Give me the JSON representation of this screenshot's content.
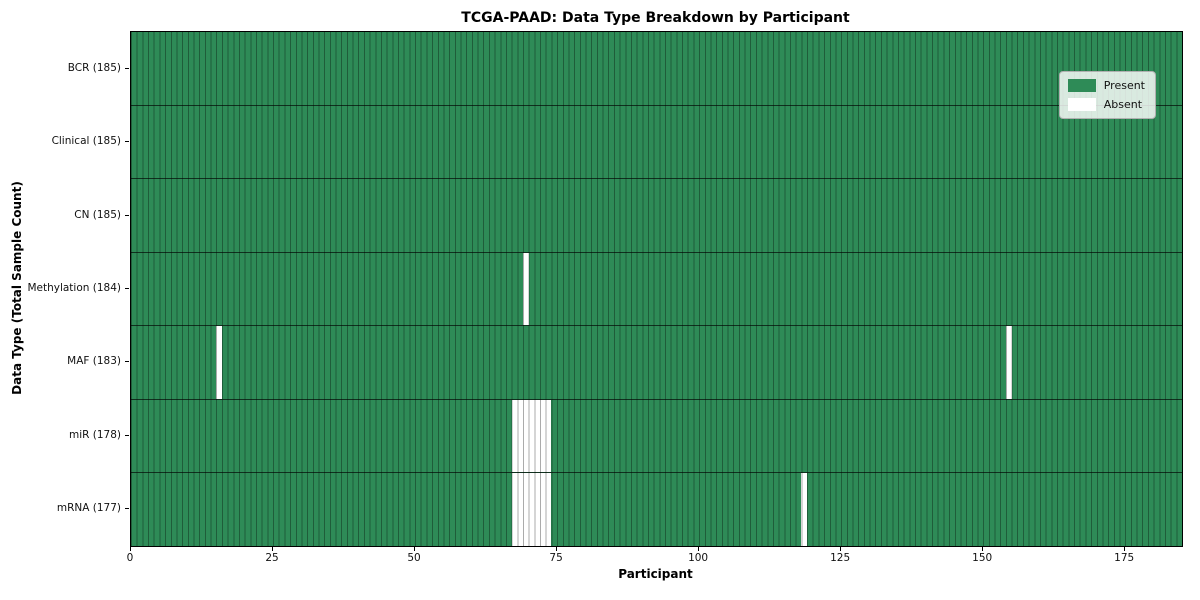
{
  "chart_data": {
    "type": "heatmap",
    "title": "TCGA-PAAD: Data Type Breakdown by Participant",
    "xlabel": "Participant",
    "ylabel": "Data Type (Total Sample Count)",
    "n_participants": 185,
    "xlim": [
      0,
      185
    ],
    "x_ticks": [
      0,
      25,
      50,
      75,
      100,
      125,
      150,
      175
    ],
    "grid": "cell borders between every participant column and each row",
    "legend": {
      "position": "upper right",
      "entries": [
        {
          "label": "Present",
          "color": "#2e8b57"
        },
        {
          "label": "Absent",
          "color": "#ffffff"
        }
      ]
    },
    "colors": {
      "present": "#2e8b57",
      "absent": "#ffffff",
      "cell_border": "rgba(0,0,0,0.33)",
      "row_separator": "rgba(0,0,0,0.65)",
      "axis_border": "#000000"
    },
    "rows": [
      {
        "label": "BCR (185)",
        "data_type": "BCR",
        "total": 185,
        "missing_participants": []
      },
      {
        "label": "Clinical (185)",
        "data_type": "Clinical",
        "total": 185,
        "missing_participants": []
      },
      {
        "label": "CN (185)",
        "data_type": "CN",
        "total": 185,
        "missing_participants": []
      },
      {
        "label": "Methylation (184)",
        "data_type": "Methylation",
        "total": 184,
        "missing_participants": [
          69
        ]
      },
      {
        "label": "MAF (183)",
        "data_type": "MAF",
        "total": 183,
        "missing_participants": [
          15,
          154
        ]
      },
      {
        "label": "miR (178)",
        "data_type": "miR",
        "total": 178,
        "missing_participants": [
          67,
          68,
          69,
          70,
          71,
          72,
          73
        ]
      },
      {
        "label": "mRNA (177)",
        "data_type": "mRNA",
        "total": 177,
        "missing_participants": [
          67,
          68,
          69,
          70,
          71,
          72,
          73,
          118
        ]
      }
    ]
  }
}
